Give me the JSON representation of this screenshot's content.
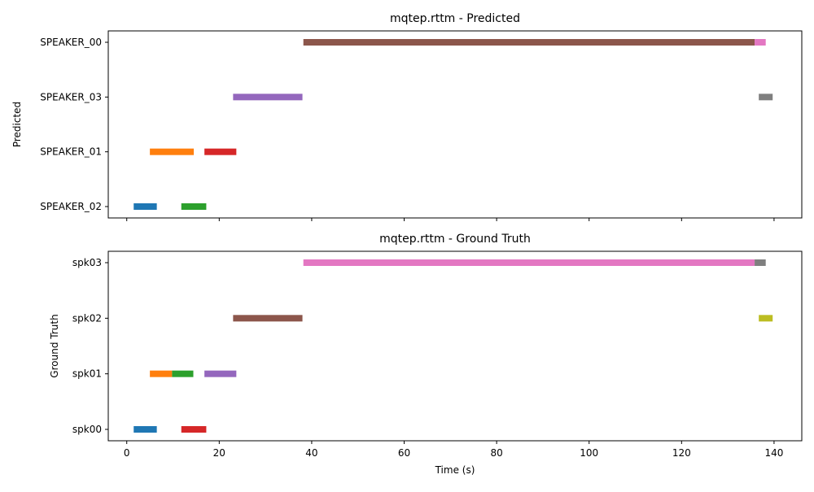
{
  "chart_data": [
    {
      "type": "bar",
      "orientation": "horizontal-timeline",
      "title": "mqtep.rttm - Predicted",
      "xlabel": "",
      "ylabel": "Predicted",
      "xlim": [
        -4,
        146
      ],
      "xticks": [
        0,
        20,
        40,
        60,
        80,
        100,
        120,
        140
      ],
      "show_xtick_labels": false,
      "grid": false,
      "categories": [
        "SPEAKER_02",
        "SPEAKER_01",
        "SPEAKER_03",
        "SPEAKER_00"
      ],
      "segments": [
        {
          "speaker": "SPEAKER_02",
          "start": 1.5,
          "end": 6.5,
          "color": "#1f77b4"
        },
        {
          "speaker": "SPEAKER_01",
          "start": 5.0,
          "end": 14.5,
          "color": "#ff7f0e"
        },
        {
          "speaker": "SPEAKER_02",
          "start": 11.8,
          "end": 17.2,
          "color": "#2ca02c"
        },
        {
          "speaker": "SPEAKER_01",
          "start": 16.8,
          "end": 23.7,
          "color": "#d62728"
        },
        {
          "speaker": "SPEAKER_03",
          "start": 23.0,
          "end": 38.0,
          "color": "#9467bd"
        },
        {
          "speaker": "SPEAKER_00",
          "start": 38.2,
          "end": 135.8,
          "color": "#8c564b"
        },
        {
          "speaker": "SPEAKER_00",
          "start": 135.8,
          "end": 138.2,
          "color": "#e377c2"
        },
        {
          "speaker": "SPEAKER_03",
          "start": 136.7,
          "end": 139.7,
          "color": "#7f7f7f"
        }
      ]
    },
    {
      "type": "bar",
      "orientation": "horizontal-timeline",
      "title": "mqtep.rttm - Ground Truth",
      "xlabel": "Time (s)",
      "ylabel": "Ground Truth",
      "xlim": [
        -4,
        146
      ],
      "xticks": [
        0,
        20,
        40,
        60,
        80,
        100,
        120,
        140
      ],
      "show_xtick_labels": true,
      "grid": false,
      "categories": [
        "spk00",
        "spk01",
        "spk02",
        "spk03"
      ],
      "segments": [
        {
          "speaker": "spk00",
          "start": 1.5,
          "end": 6.5,
          "color": "#1f77b4"
        },
        {
          "speaker": "spk01",
          "start": 5.0,
          "end": 9.8,
          "color": "#ff7f0e"
        },
        {
          "speaker": "spk01",
          "start": 9.8,
          "end": 14.4,
          "color": "#2ca02c"
        },
        {
          "speaker": "spk00",
          "start": 11.8,
          "end": 17.2,
          "color": "#d62728"
        },
        {
          "speaker": "spk01",
          "start": 16.8,
          "end": 23.7,
          "color": "#9467bd"
        },
        {
          "speaker": "spk02",
          "start": 23.0,
          "end": 38.0,
          "color": "#8c564b"
        },
        {
          "speaker": "spk03",
          "start": 38.2,
          "end": 135.8,
          "color": "#e377c2"
        },
        {
          "speaker": "spk03",
          "start": 135.8,
          "end": 138.2,
          "color": "#7f7f7f"
        },
        {
          "speaker": "spk02",
          "start": 136.7,
          "end": 139.7,
          "color": "#bcbd22"
        }
      ]
    }
  ]
}
